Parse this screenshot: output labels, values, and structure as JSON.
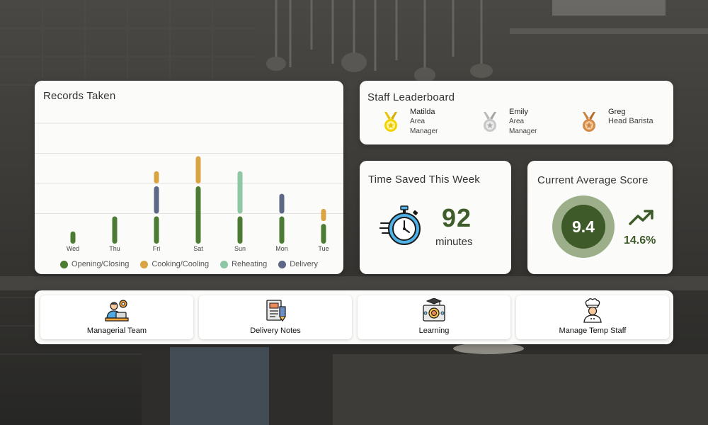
{
  "colors": {
    "opening_closing": "#4c7c33",
    "cooking_cooling": "#d9a441",
    "reheating": "#8ec7a4",
    "delivery": "#5b6886",
    "accent_dark_green": "#3d5a28",
    "ring_light_green": "#9caf8a"
  },
  "records": {
    "title": "Records Taken"
  },
  "chart_data": {
    "type": "bar",
    "stacked": true,
    "categories": [
      "Wed",
      "Thu",
      "Fri",
      "Sat",
      "Sun",
      "Mon",
      "Tue"
    ],
    "series": [
      {
        "name": "Opening/Closing",
        "values": [
          1,
          2,
          2,
          4,
          2,
          2,
          1.5
        ]
      },
      {
        "name": "Cooking/Cooling",
        "values": [
          0,
          0,
          1,
          2,
          0,
          0,
          1
        ]
      },
      {
        "name": "Reheating",
        "values": [
          0,
          0,
          0,
          0,
          3,
          0,
          0
        ]
      },
      {
        "name": "Delivery",
        "values": [
          0,
          0,
          2,
          0,
          0,
          1.5,
          0
        ]
      }
    ],
    "ylim": [
      0,
      8
    ],
    "grid": true,
    "legend_position": "bottom"
  },
  "leaderboard": {
    "title": "Staff Leaderboard",
    "entries": [
      {
        "name": "Matilda",
        "role_line1": "Area",
        "role_line2": "Manager",
        "medal": "gold-medal-icon"
      },
      {
        "name": "Emily",
        "role_line1": "Area",
        "role_line2": "Manager",
        "medal": "silver-medal-icon"
      },
      {
        "name": "Greg",
        "role_line1": "Head Barista",
        "role_line2": "",
        "medal": "bronze-medal-icon"
      }
    ]
  },
  "time_saved": {
    "title": "Time Saved This Week",
    "value": "92",
    "unit": "minutes",
    "icon": "stopwatch-icon"
  },
  "score": {
    "title": "Current Average Score",
    "value": "9.4",
    "trend": "14.6%",
    "trend_icon": "trending-up-icon"
  },
  "nav": {
    "tiles": [
      {
        "label": "Managerial Team",
        "icon": "manager-icon"
      },
      {
        "label": "Delivery Notes",
        "icon": "delivery-notes-icon"
      },
      {
        "label": "Learning",
        "icon": "learning-icon"
      },
      {
        "label": "Manage Temp Staff",
        "icon": "chef-icon"
      }
    ]
  }
}
